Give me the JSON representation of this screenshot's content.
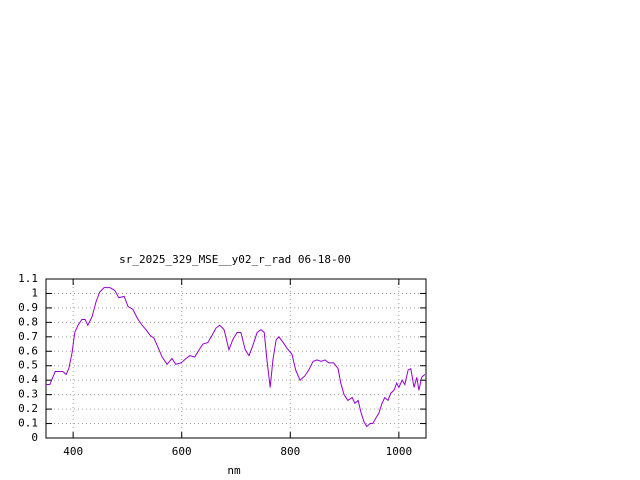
{
  "chart_data": {
    "type": "line",
    "title": "sr_2025_329_MSE__y02_r_rad 06-18-00",
    "x_label": "nm",
    "x": [
      350,
      357,
      367,
      372,
      381,
      387,
      392,
      398,
      403,
      409,
      416,
      422,
      427,
      435,
      442,
      449,
      457,
      468,
      477,
      484,
      494,
      501,
      510,
      518,
      527,
      534,
      542,
      549,
      556,
      564,
      573,
      582,
      589,
      599,
      608,
      615,
      624,
      632,
      639,
      648,
      656,
      663,
      670,
      678,
      687,
      694,
      702,
      709,
      717,
      724,
      731,
      739,
      746,
      752,
      757,
      763,
      768,
      774,
      779,
      787,
      794,
      803,
      810,
      818,
      827,
      834,
      842,
      849,
      857,
      864,
      871,
      880,
      888,
      893,
      899,
      906,
      914,
      919,
      925,
      930,
      936,
      941,
      947,
      952,
      958,
      963,
      969,
      974,
      980,
      985,
      991,
      996,
      1000,
      1006,
      1011,
      1017,
      1022,
      1028,
      1033,
      1037,
      1042,
      1048
    ],
    "series": [
      {
        "color": "#9400d3",
        "values": [
          0.37,
          0.37,
          0.46,
          0.46,
          0.46,
          0.44,
          0.48,
          0.59,
          0.73,
          0.78,
          0.82,
          0.82,
          0.78,
          0.84,
          0.94,
          1.01,
          1.04,
          1.04,
          1.02,
          0.97,
          0.98,
          0.91,
          0.89,
          0.83,
          0.78,
          0.75,
          0.71,
          0.69,
          0.63,
          0.56,
          0.51,
          0.55,
          0.51,
          0.52,
          0.55,
          0.57,
          0.56,
          0.61,
          0.65,
          0.66,
          0.71,
          0.76,
          0.78,
          0.75,
          0.61,
          0.68,
          0.73,
          0.73,
          0.61,
          0.57,
          0.64,
          0.73,
          0.75,
          0.73,
          0.54,
          0.35,
          0.54,
          0.68,
          0.7,
          0.66,
          0.62,
          0.58,
          0.47,
          0.4,
          0.43,
          0.47,
          0.53,
          0.54,
          0.53,
          0.54,
          0.52,
          0.52,
          0.48,
          0.38,
          0.3,
          0.26,
          0.28,
          0.24,
          0.26,
          0.18,
          0.11,
          0.08,
          0.1,
          0.1,
          0.14,
          0.17,
          0.24,
          0.28,
          0.26,
          0.31,
          0.33,
          0.38,
          0.35,
          0.4,
          0.37,
          0.47,
          0.48,
          0.35,
          0.42,
          0.33,
          0.42,
          0.44
        ]
      }
    ],
    "xlim": [
      350,
      1050
    ],
    "xticks": [
      400,
      600,
      800,
      1000
    ],
    "ylim": [
      0,
      1.1
    ],
    "yticks": [
      0,
      0.1,
      0.2,
      0.3,
      0.4,
      0.5,
      0.6,
      0.7,
      0.8,
      0.9,
      1,
      1.1
    ],
    "grid": true
  }
}
